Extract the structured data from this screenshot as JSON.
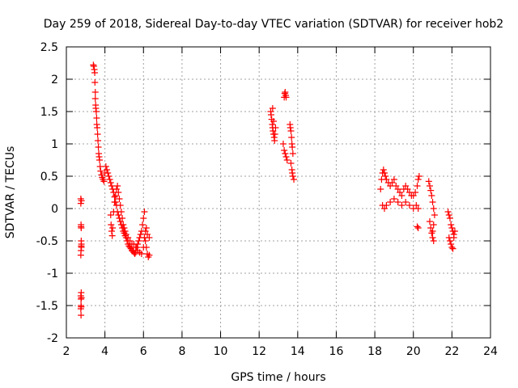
{
  "chart_data": {
    "type": "scatter",
    "title": "Day 259 of 2018, Sidereal Day-to-day VTEC variation (SDTVAR) for receiver hob2",
    "xlabel": "GPS time / hours",
    "ylabel": "SDTVAR / TECUs",
    "xlim": [
      2,
      24
    ],
    "ylim": [
      -2,
      2.5
    ],
    "xticks": [
      2,
      4,
      6,
      8,
      10,
      12,
      14,
      16,
      18,
      20,
      22,
      24
    ],
    "yticks": [
      -2,
      -1.5,
      -1,
      -0.5,
      0,
      0.5,
      1,
      1.5,
      2,
      2.5
    ],
    "xtick_labels": [
      "2",
      "4",
      "6",
      "8",
      "10",
      "12",
      "14",
      "16",
      "18",
      "20",
      "22",
      "24"
    ],
    "ytick_labels": [
      "-2",
      "-1.5",
      "-1",
      "-0.5",
      "0",
      "0.5",
      "1",
      "1.5",
      "2",
      "2.5"
    ],
    "grid": true,
    "marker": "+",
    "series_color": "#ff0000",
    "series": [
      {
        "name": "SDTVAR",
        "x": [
          2.75,
          2.75,
          2.76,
          2.77,
          2.77,
          2.78,
          2.78,
          2.76,
          2.75,
          2.77,
          2.75,
          2.76,
          2.78,
          2.76,
          2.75,
          2.77,
          2.76,
          2.78,
          2.76,
          2.77,
          3.4,
          3.42,
          3.45,
          3.47,
          3.48,
          3.5,
          3.5,
          3.52,
          3.53,
          3.55,
          3.57,
          3.58,
          3.6,
          3.62,
          3.64,
          3.66,
          3.68,
          3.7,
          3.72,
          3.75,
          3.78,
          3.82,
          3.86,
          3.9,
          3.95,
          4.0,
          4.05,
          4.1,
          4.15,
          4.2,
          4.25,
          4.3,
          4.35,
          4.4,
          4.45,
          4.5,
          4.55,
          4.6,
          4.65,
          4.7,
          4.75,
          4.8,
          4.85,
          4.9,
          4.95,
          5.0,
          5.05,
          5.1,
          5.15,
          5.2,
          5.25,
          5.3,
          5.35,
          5.4,
          5.45,
          5.5,
          5.55,
          5.6,
          5.65,
          5.7,
          5.75,
          5.8,
          5.85,
          5.9,
          5.95,
          6.0,
          6.05,
          6.1,
          6.15,
          6.2,
          6.25,
          6.3,
          4.3,
          4.32,
          4.35,
          4.38,
          4.4,
          4.45,
          4.5,
          4.55,
          4.6,
          4.65,
          4.7,
          4.75,
          4.8,
          4.85,
          4.9,
          4.95,
          5.0,
          5.05,
          5.1,
          5.2,
          5.3,
          5.4,
          5.5,
          5.6,
          5.7,
          5.8,
          5.9,
          6.0,
          6.05,
          6.1,
          6.15,
          6.2,
          6.3,
          12.6,
          12.62,
          12.65,
          12.68,
          12.7,
          12.72,
          12.75,
          12.78,
          12.8,
          12.82,
          12.85,
          12.7,
          12.75,
          13.3,
          13.33,
          13.35,
          13.38,
          13.4,
          13.25,
          13.3,
          13.35,
          13.4,
          13.45,
          13.6,
          13.62,
          13.65,
          13.68,
          13.7,
          13.72,
          13.75,
          13.65,
          13.7,
          13.72,
          13.75,
          13.8,
          18.3,
          18.35,
          18.4,
          18.45,
          18.5,
          18.55,
          18.6,
          18.7,
          18.8,
          18.9,
          19.0,
          19.1,
          19.2,
          19.3,
          19.4,
          19.5,
          19.6,
          19.7,
          19.8,
          19.9,
          20.0,
          20.1,
          20.2,
          20.25,
          20.3,
          18.4,
          18.5,
          18.6,
          18.8,
          19.0,
          19.2,
          19.4,
          19.6,
          19.8,
          20.0,
          20.15,
          20.25,
          20.2,
          20.25,
          20.8,
          20.85,
          20.9,
          20.95,
          21.0,
          21.05,
          21.1,
          20.85,
          20.9,
          20.95,
          21.0,
          21.05,
          21.0,
          21.05,
          21.8,
          21.85,
          21.9,
          21.95,
          22.0,
          22.05,
          22.1,
          21.85,
          21.9,
          21.95,
          22.0,
          22.05,
          22.1,
          22.15
        ],
        "y": [
          0.15,
          0.08,
          -0.25,
          -0.3,
          -0.5,
          -0.55,
          -0.6,
          -0.65,
          -0.72,
          -1.3,
          -1.35,
          -1.4,
          -1.38,
          -1.5,
          -1.55,
          -1.52,
          -1.65,
          0.12,
          -0.28,
          -0.58,
          2.22,
          2.2,
          2.15,
          2.1,
          1.95,
          1.8,
          1.7,
          1.6,
          1.55,
          1.5,
          1.4,
          1.3,
          1.25,
          1.15,
          1.05,
          0.95,
          0.85,
          0.8,
          0.75,
          0.65,
          0.58,
          0.52,
          0.48,
          0.45,
          0.42,
          0.55,
          0.65,
          0.6,
          0.55,
          0.5,
          0.45,
          0.4,
          0.35,
          0.3,
          0.25,
          0.18,
          0.1,
          0.05,
          -0.05,
          -0.1,
          -0.15,
          -0.2,
          -0.25,
          -0.3,
          -0.35,
          -0.38,
          -0.42,
          -0.45,
          -0.5,
          -0.55,
          -0.58,
          -0.6,
          -0.62,
          -0.65,
          -0.66,
          -0.68,
          -0.7,
          -0.68,
          -0.6,
          -0.55,
          -0.5,
          -0.45,
          -0.4,
          -0.35,
          -0.25,
          -0.15,
          -0.05,
          -0.5,
          -0.6,
          -0.7,
          -0.75,
          -0.72,
          -0.1,
          -0.25,
          -0.35,
          -0.42,
          -0.3,
          -0.05,
          0.1,
          0.2,
          0.3,
          0.35,
          0.25,
          0.15,
          0.05,
          -0.05,
          -0.15,
          -0.25,
          -0.3,
          -0.35,
          -0.4,
          -0.45,
          -0.5,
          -0.55,
          -0.55,
          -0.6,
          -0.65,
          -0.68,
          -0.7,
          -0.6,
          -0.45,
          -0.35,
          -0.3,
          -0.4,
          -0.45,
          1.5,
          1.45,
          1.38,
          1.3,
          1.25,
          1.2,
          1.15,
          1.1,
          1.05,
          1.15,
          1.25,
          1.55,
          1.35,
          1.72,
          1.78,
          1.8,
          1.75,
          1.72,
          1.0,
          0.9,
          0.85,
          0.8,
          0.75,
          1.3,
          1.25,
          1.2,
          1.1,
          1.0,
          0.95,
          0.85,
          0.7,
          0.6,
          0.55,
          0.5,
          0.45,
          0.3,
          0.45,
          0.55,
          0.6,
          0.55,
          0.5,
          0.45,
          0.4,
          0.35,
          0.4,
          0.45,
          0.35,
          0.3,
          0.25,
          0.2,
          0.3,
          0.35,
          0.3,
          0.25,
          0.2,
          0.2,
          0.25,
          0.35,
          0.45,
          0.5,
          0.05,
          0.0,
          0.05,
          0.1,
          0.15,
          0.1,
          0.05,
          0.1,
          0.05,
          0.0,
          0.05,
          0.0,
          -0.28,
          -0.3,
          0.42,
          0.35,
          0.28,
          0.2,
          0.1,
          0.0,
          -0.1,
          -0.2,
          -0.3,
          -0.38,
          -0.45,
          -0.5,
          -0.35,
          -0.25,
          -0.05,
          -0.1,
          -0.15,
          -0.25,
          -0.3,
          -0.35,
          -0.4,
          -0.45,
          -0.5,
          -0.55,
          -0.6,
          -0.62,
          -0.45,
          -0.35
        ]
      }
    ]
  }
}
